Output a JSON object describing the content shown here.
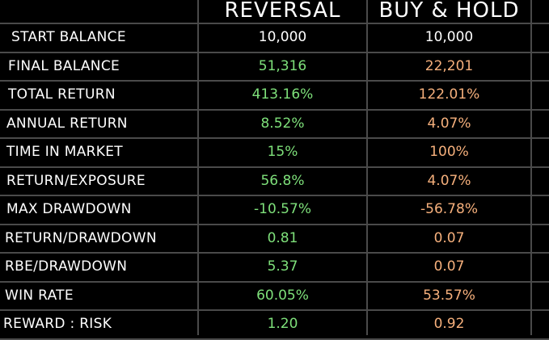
{
  "headers": {
    "reversal": "REVERSAL",
    "buy_hold": "BUY & HOLD"
  },
  "colors": {
    "background": "#000000",
    "label": "#ffffff",
    "neutral": "#ffffff",
    "reversal": "#7ee07a",
    "buy_hold": "#f6b07c",
    "grid": "#4a4a4a"
  },
  "rows": [
    {
      "label": "START BALANCE",
      "reversal": "10,000",
      "buy_hold": "10,000",
      "neutral": true
    },
    {
      "label": "FINAL BALANCE",
      "reversal": "51,316",
      "buy_hold": "22,201"
    },
    {
      "label": "TOTAL RETURN",
      "reversal": "413.16%",
      "buy_hold": "122.01%"
    },
    {
      "label": "ANNUAL RETURN",
      "reversal": "8.52%",
      "buy_hold": "4.07%"
    },
    {
      "label": "TIME IN MARKET",
      "reversal": "15%",
      "buy_hold": "100%"
    },
    {
      "label": "RETURN/EXPOSURE",
      "reversal": "56.8%",
      "buy_hold": "4.07%"
    },
    {
      "label": "MAX DRAWDOWN",
      "reversal": "-10.57%",
      "buy_hold": "-56.78%"
    },
    {
      "label": "RETURN/DRAWDOWN",
      "reversal": "0.81",
      "buy_hold": "0.07"
    },
    {
      "label": "RBE/DRAWDOWN",
      "reversal": "5.37",
      "buy_hold": "0.07"
    },
    {
      "label": "WIN RATE",
      "reversal": "60.05%",
      "buy_hold": "53.57%"
    },
    {
      "label": "REWARD : RISK",
      "reversal": "1.20",
      "buy_hold": "0.92"
    }
  ]
}
